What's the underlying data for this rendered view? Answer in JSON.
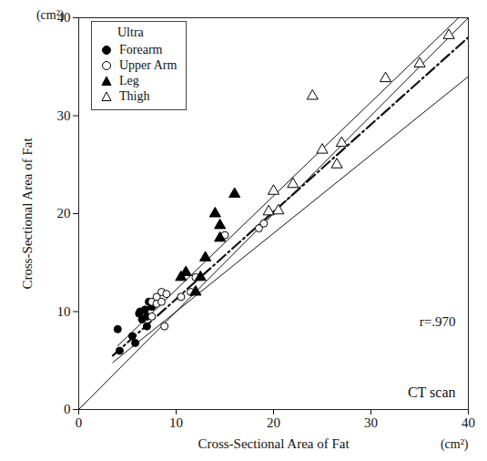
{
  "chart_data": {
    "type": "scatter",
    "x_label": "Cross-Sectional Area of Fat",
    "y_label": "Cross-Sectional Area of Fat",
    "x_unit": "(cm²)",
    "y_unit": "(cm²)",
    "legend_title": "Ultra",
    "annotations": [
      "r=.970",
      "CT scan"
    ],
    "xlim": [
      0,
      40
    ],
    "ylim": [
      0,
      40
    ],
    "xticks": [
      0,
      10,
      20,
      30,
      40
    ],
    "yticks": [
      0,
      10,
      20,
      30,
      40
    ],
    "legend": "top-left",
    "series": [
      {
        "name": "Forearm",
        "color": "#000000",
        "marker": "circle-filled",
        "x": [
          4,
          4.2,
          5.5,
          5.8,
          6.2,
          6.3,
          6.5,
          6.8,
          7,
          7,
          7.2,
          7.5
        ],
        "values": [
          8.2,
          6,
          7.5,
          6.8,
          9.8,
          10,
          9.2,
          10.2,
          8.5,
          9.5,
          11,
          10.5
        ]
      },
      {
        "name": "Upper Arm",
        "color": "#000000",
        "marker": "circle-open",
        "x": [
          7.5,
          7.5,
          8,
          8,
          8.5,
          8.5,
          8.8,
          9,
          10.5,
          11.5,
          12,
          15,
          18.5,
          19
        ],
        "values": [
          9.5,
          11,
          11.5,
          10.8,
          12,
          11,
          8.5,
          11.8,
          11.5,
          12,
          13.5,
          17.8,
          18.5,
          19
        ]
      },
      {
        "name": "Leg",
        "color": "#000000",
        "marker": "triangle-filled",
        "x": [
          10.5,
          11,
          12,
          12.5,
          13,
          14,
          14.5,
          14.5,
          16
        ],
        "values": [
          13.5,
          14,
          12,
          13.5,
          15.5,
          20,
          18.8,
          17.5,
          22
        ]
      },
      {
        "name": "Thigh",
        "color": "#000000",
        "marker": "triangle-open",
        "x": [
          19.5,
          20,
          20.5,
          22,
          24,
          25,
          26.5,
          27,
          31.5,
          35,
          38
        ],
        "values": [
          20.2,
          22.3,
          20.3,
          23,
          32,
          26.5,
          25,
          27.2,
          33.8,
          35.3,
          38.2
        ]
      }
    ],
    "lines": [
      {
        "x": [
          0,
          40
        ],
        "values": [
          0,
          40
        ],
        "line_style": "solid"
      },
      {
        "x": [
          4,
          39
        ],
        "values": [
          6.5,
          40
        ],
        "line_style": "solid"
      },
      {
        "x": [
          3.5,
          40
        ],
        "values": [
          5.5,
          38
        ],
        "line_style": "dashdot"
      },
      {
        "x": [
          3.5,
          40
        ],
        "values": [
          4.8,
          34
        ],
        "line_style": "solid"
      }
    ]
  }
}
